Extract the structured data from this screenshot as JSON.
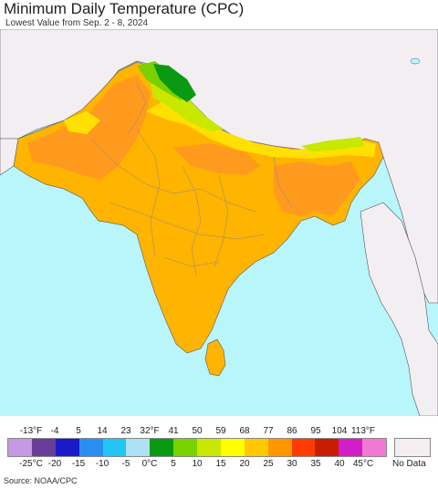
{
  "header": {
    "title": "Minimum Daily Temperature (CPC)",
    "subtitle": "Lowest Value from Sep. 2 - 8, 2024"
  },
  "legend": {
    "fahrenheit_labels": [
      "-13°F",
      "-4",
      "5",
      "14",
      "23",
      "32°F",
      "41",
      "50",
      "59",
      "68",
      "77",
      "86",
      "95",
      "104",
      "113°F"
    ],
    "celsius_labels": [
      "-25°C",
      "-20",
      "-15",
      "-10",
      "-5",
      "0°C",
      "5",
      "10",
      "15",
      "20",
      "25",
      "30",
      "35",
      "40",
      "45°C"
    ],
    "colors": [
      "#c49ae0",
      "#6a3d9a",
      "#1a1ac8",
      "#2a8ef0",
      "#22c4f4",
      "#aee0f6",
      "#0a9a12",
      "#7ad100",
      "#c8e800",
      "#ffff00",
      "#ffc800",
      "#ff9600",
      "#ff3c00",
      "#c81e00",
      "#d21ec8",
      "#f07ad2"
    ],
    "no_data_label": "No Data",
    "no_data_color": "#f2eef2"
  },
  "map": {
    "ocean_color": "#b8f6fc",
    "land_no_data_color": "#f2eef2",
    "region_colors": {
      "main": "#ffb400",
      "warm": "#ff9a1e",
      "mild": "#ffe000",
      "cool": "#c8e800",
      "cold": "#7ad100",
      "coldest": "#0a9a12"
    }
  },
  "footer": {
    "source": "Source: NOAA/CPC"
  }
}
